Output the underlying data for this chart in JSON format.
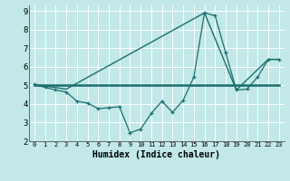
{
  "xlabel": "Humidex (Indice chaleur)",
  "background_color": "#c2e8e8",
  "grid_color": "#ffffff",
  "line_color": "#1a6e6e",
  "xlim": [
    -0.5,
    23.5
  ],
  "ylim": [
    2,
    9.3
  ],
  "xticks": [
    0,
    1,
    2,
    3,
    4,
    5,
    6,
    7,
    8,
    9,
    10,
    11,
    12,
    13,
    14,
    15,
    16,
    17,
    18,
    19,
    20,
    21,
    22,
    23
  ],
  "yticks": [
    2,
    3,
    4,
    5,
    6,
    7,
    8,
    9
  ],
  "line1_x": [
    0,
    1,
    2,
    3,
    4,
    5,
    6,
    7,
    8,
    9,
    10,
    11,
    12,
    13,
    14,
    15,
    16,
    17,
    18,
    19,
    20,
    21,
    22,
    23
  ],
  "line1_y": [
    5.05,
    4.9,
    4.75,
    4.65,
    4.15,
    4.05,
    3.75,
    3.8,
    3.85,
    2.45,
    2.65,
    3.5,
    4.15,
    3.55,
    4.2,
    5.45,
    8.9,
    8.75,
    6.75,
    4.75,
    4.8,
    5.45,
    6.4,
    6.4
  ],
  "line2_x": [
    0,
    3,
    16,
    19,
    22,
    23
  ],
  "line2_y": [
    5.05,
    4.8,
    8.9,
    4.75,
    6.4,
    6.4
  ],
  "line3_x": [
    0,
    23
  ],
  "line3_y": [
    5.0,
    5.0
  ]
}
